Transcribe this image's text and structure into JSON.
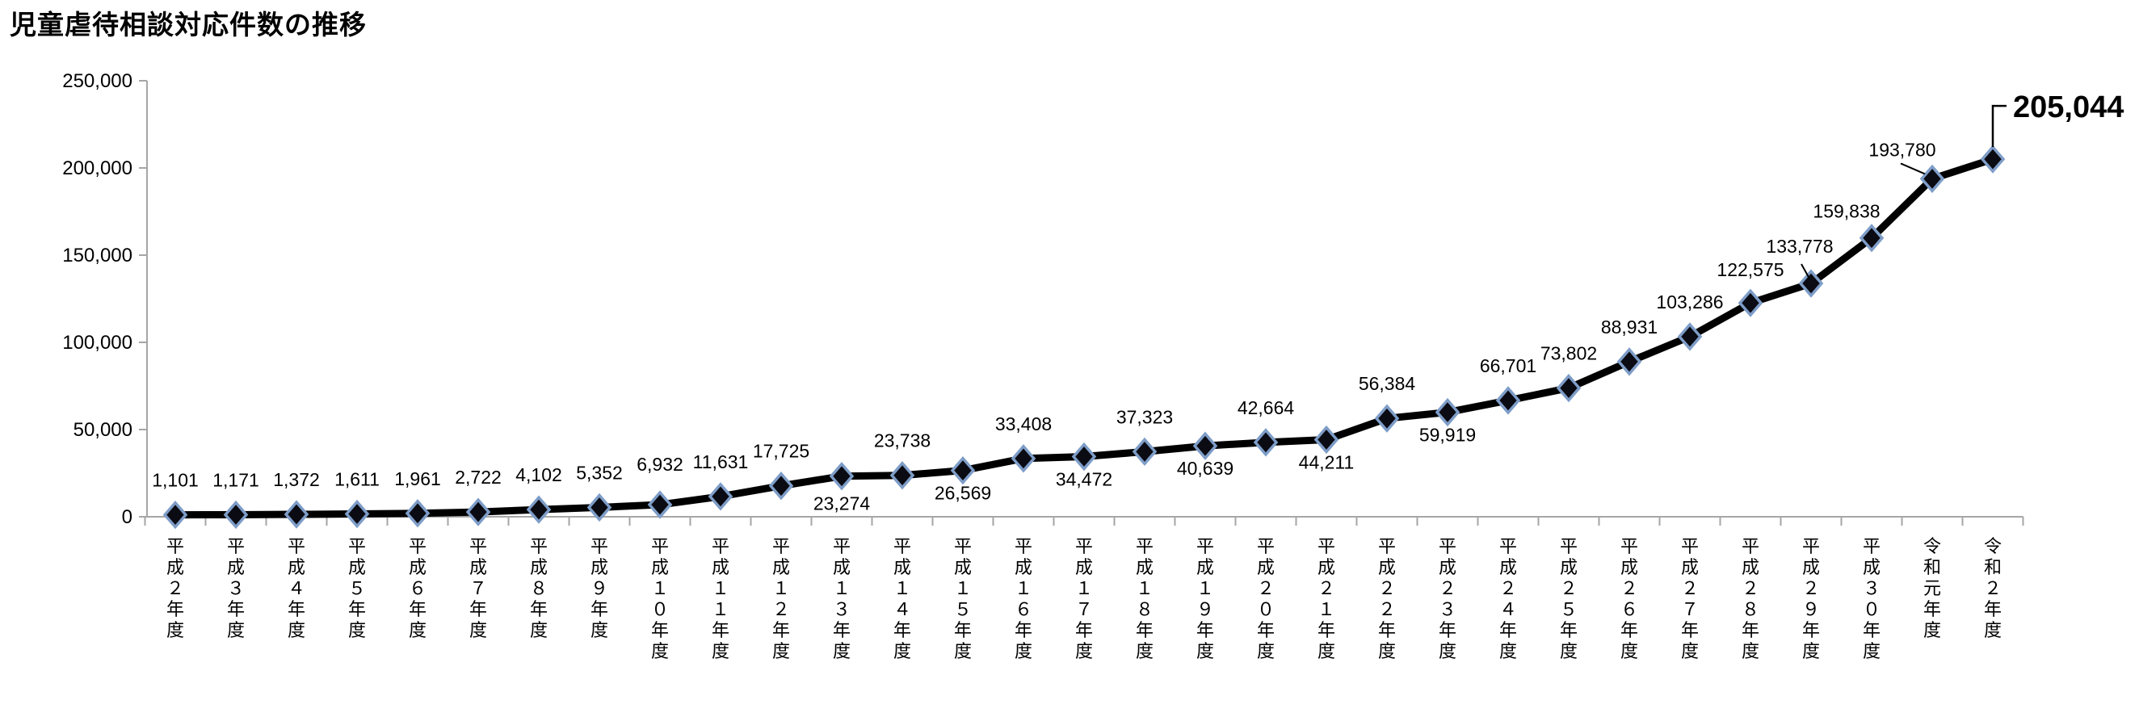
{
  "title": "児童虐待相談対応件数の推移",
  "chart_data": {
    "type": "line",
    "title": "児童虐待相談対応件数の推移",
    "xlabel": "",
    "ylabel": "",
    "ylim": [
      0,
      250000
    ],
    "ytick_values": [
      0,
      50000,
      100000,
      150000,
      200000,
      250000
    ],
    "ytick_labels": [
      "0",
      "50,000",
      "100,000",
      "150,000",
      "200,000",
      "250,000"
    ],
    "grid": false,
    "legend": "none",
    "categories": [
      "平成２年度",
      "平成３年度",
      "平成４年度",
      "平成５年度",
      "平成６年度",
      "平成７年度",
      "平成８年度",
      "平成９年度",
      "平成１０年度",
      "平成１１年度",
      "平成１２年度",
      "平成１３年度",
      "平成１４年度",
      "平成１５年度",
      "平成１６年度",
      "平成１７年度",
      "平成１８年度",
      "平成１９年度",
      "平成２０年度",
      "平成２１年度",
      "平成２２年度",
      "平成２３年度",
      "平成２４年度",
      "平成２５年度",
      "平成２６年度",
      "平成２７年度",
      "平成２８年度",
      "平成２９年度",
      "平成３０年度",
      "令和元年度",
      "令和２年度"
    ],
    "series": [
      {
        "name": "児童虐待相談対応件数",
        "values": [
          1101,
          1171,
          1372,
          1611,
          1961,
          2722,
          4102,
          5352,
          6932,
          11631,
          17725,
          23274,
          23738,
          26569,
          33408,
          34472,
          37323,
          40639,
          42664,
          44211,
          56384,
          59919,
          66701,
          73802,
          88931,
          103286,
          122575,
          133778,
          159838,
          193780,
          205044
        ]
      }
    ],
    "data_labels": [
      "1,101",
      "1,171",
      "1,372",
      "1,611",
      "1,961",
      "2,722",
      "4,102",
      "5,352",
      "6,932",
      "11,631",
      "17,725",
      "23,274",
      "23,738",
      "26,569",
      "33,408",
      "34,472",
      "37,323",
      "40,639",
      "42,664",
      "44,211",
      "56,384",
      "59,919",
      "66,701",
      "73,802",
      "88,931",
      "103,286",
      "122,575",
      "133,778",
      "159,838",
      "193,780",
      "205,044"
    ],
    "labels_below_line_indices": [
      11,
      13,
      15,
      17,
      19,
      21
    ],
    "label_overrides": {
      "8": {
        "dy": -42
      },
      "11": {
        "dy": 42
      },
      "26": {
        "dy": -33
      },
      "27": {
        "dx": -14,
        "dy": -38
      },
      "28": {
        "dx": -31,
        "dy": -25
      },
      "29": {
        "dx": -37,
        "dy": -28
      },
      "30": {
        "dx": 25,
        "dy": -52,
        "anchor": "start",
        "size": 38,
        "bold": true
      }
    },
    "leader_lines": [
      {
        "index": 27,
        "segment": [
          [
            -12,
            -24
          ],
          [
            -2,
            -6
          ]
        ]
      },
      {
        "index": 29,
        "segment": [
          [
            -39,
            -19
          ],
          [
            -9,
            -6
          ]
        ]
      },
      {
        "index": 30,
        "elbow": true
      }
    ],
    "colors": {
      "line": "#000000",
      "marker_fill": "#0b0b13",
      "marker_stroke": "#7e9dc8",
      "axis": "#a6a6a6",
      "text": "#000000",
      "background": "#ffffff"
    },
    "marker": "diamond"
  }
}
